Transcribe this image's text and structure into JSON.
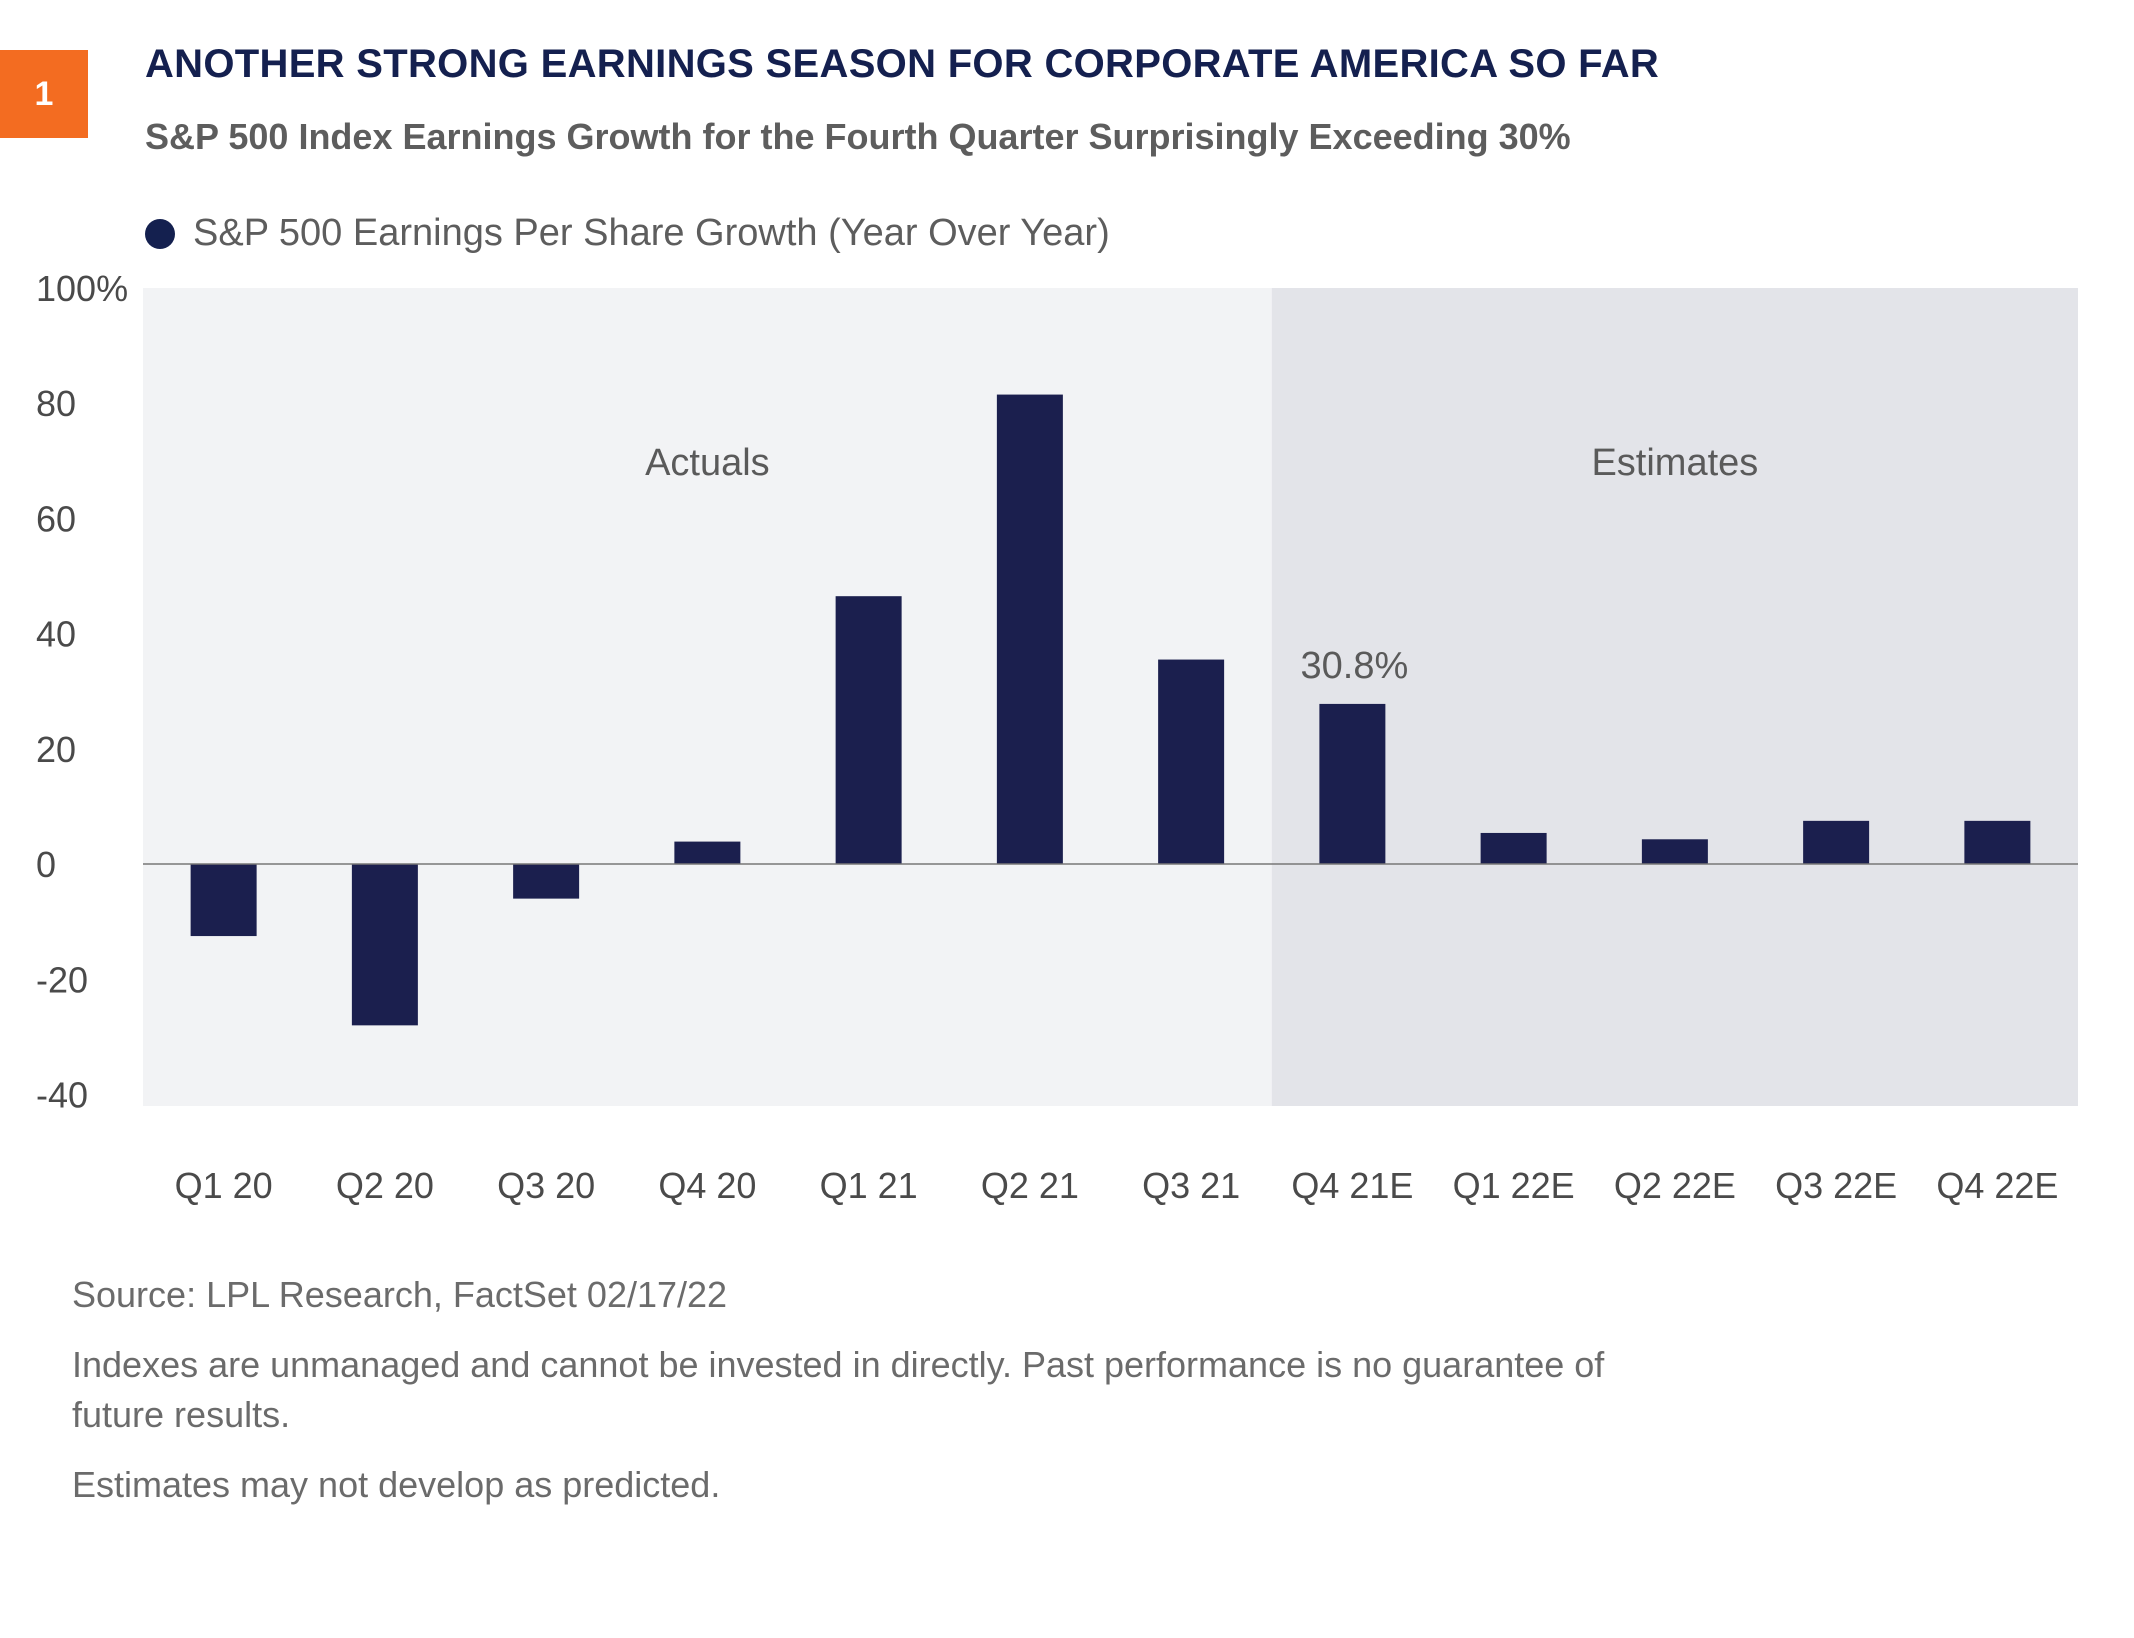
{
  "header": {
    "badge": "1",
    "title": "ANOTHER STRONG EARNINGS SEASON FOR CORPORATE AMERICA SO FAR",
    "subtitle": "S&P 500 Index Earnings Growth for the Fourth Quarter Surprisingly Exceeding 30%"
  },
  "colors": {
    "accent": "#f36c21",
    "navy": "#14204f",
    "bar": "#1b1f4e",
    "actuals_bg": "#f2f3f5",
    "estimates_bg": "#e3e4e9"
  },
  "chart_data": {
    "type": "bar",
    "legend": {
      "label": "S&P 500 Earnings Per Share Growth (Year Over Year)",
      "placement": "top-left"
    },
    "categories": [
      "Q1 20",
      "Q2 20",
      "Q3 20",
      "Q4 20",
      "Q1 21",
      "Q2 21",
      "Q3 21",
      "Q4 21E",
      "Q1 22E",
      "Q2 22E",
      "Q3 22E",
      "Q4 22E"
    ],
    "series": [
      {
        "name": "S&P 500 Earnings Per Share Growth (Year Over Year)",
        "values": [
          -12.5,
          -28,
          -6,
          3.9,
          46.5,
          81.5,
          35.5,
          27.8,
          5.4,
          4.3,
          7.5,
          7.5
        ]
      }
    ],
    "ylim": [
      -42,
      100
    ],
    "yticks": [
      100,
      80,
      60,
      40,
      20,
      0,
      -20,
      -40
    ],
    "ytick_labels": [
      "100%",
      "80",
      "60",
      "40",
      "20",
      "0",
      "-20",
      "-40"
    ],
    "regions": [
      {
        "label": "Actuals",
        "from_index": 0,
        "to_index": 6
      },
      {
        "label": "Estimates",
        "from_index": 7,
        "to_index": 11
      }
    ],
    "annotations": [
      {
        "category_index": 7,
        "text": "30.8%"
      }
    ],
    "grid": false
  },
  "footer": {
    "source": "Source: LPL Research, FactSet  02/17/22",
    "disclaimer": "Indexes are unmanaged and cannot be invested in directly. Past performance is no guarantee of future results.",
    "estimates_note": "Estimates may not develop as predicted."
  }
}
